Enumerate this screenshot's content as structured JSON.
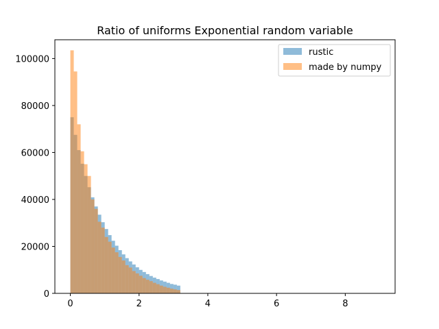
{
  "chart_data": {
    "type": "bar",
    "title": "Ratio of uniforms Exponential random variable",
    "xlabel": "",
    "ylabel": "",
    "xlim": [
      -0.45,
      9.45
    ],
    "ylim": [
      0,
      108000
    ],
    "xticks": [
      0,
      2,
      4,
      6,
      8
    ],
    "yticks": [
      0,
      20000,
      40000,
      60000,
      80000,
      100000
    ],
    "grid": false,
    "legend_position": "top-right",
    "bin_edges": [
      0.0,
      0.1,
      0.2,
      0.3,
      0.4,
      0.5,
      0.6,
      0.7,
      0.8,
      0.9,
      1.0,
      1.1,
      1.2,
      1.3,
      1.4,
      1.5,
      1.6,
      1.7,
      1.8,
      1.9,
      2.0,
      2.1,
      2.2,
      2.3,
      2.4,
      2.5,
      2.6,
      2.7,
      2.8,
      2.9,
      3.0,
      3.1,
      3.2
    ],
    "series": [
      {
        "name": "rustic",
        "color": "#1f77b4",
        "alpha": 0.5,
        "values": [
          75000,
          67500,
          61000,
          55200,
          50000,
          45200,
          40900,
          37000,
          33500,
          30300,
          27400,
          24800,
          22400,
          20300,
          18400,
          16600,
          15000,
          13600,
          12300,
          11100,
          10000,
          9100,
          8200,
          7400,
          6700,
          6100,
          5500,
          5000,
          4500,
          4000,
          3700,
          3300
        ]
      },
      {
        "name": "made by numpy",
        "color": "#ff7f0e",
        "alpha": 0.5,
        "values": [
          103500,
          94500,
          72000,
          60500,
          55000,
          50000,
          40000,
          36000,
          30500,
          28000,
          24000,
          22000,
          19500,
          17500,
          15500,
          14000,
          12000,
          11000,
          9500,
          8500,
          7500,
          6500,
          5800,
          5200,
          4500,
          3900,
          3300,
          2800,
          2400,
          2000,
          1700,
          1400
        ]
      }
    ],
    "tail_sparse_to": 3.2
  }
}
